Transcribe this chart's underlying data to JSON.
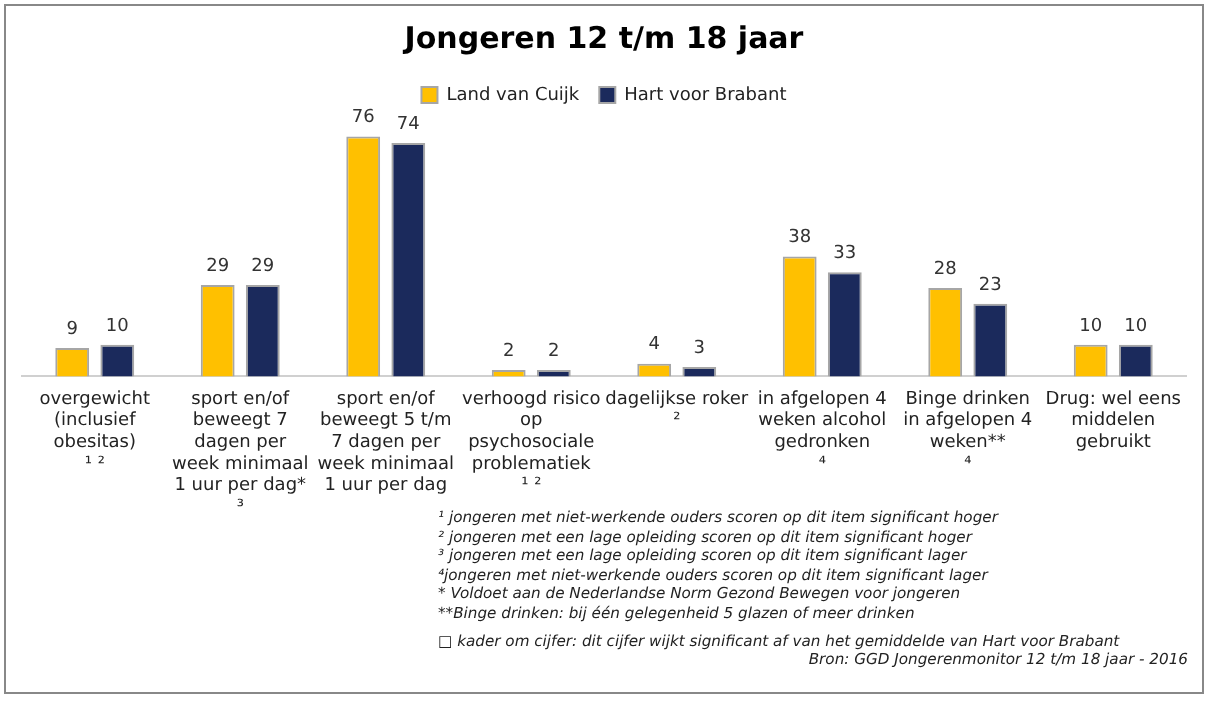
{
  "chart_data": {
    "type": "bar",
    "title": "Jongeren 12 t/m 18 jaar",
    "categories": [
      "overgewicht (inclusief obesitas) ¹ ²",
      "sport en/of beweegt 7 dagen per week minimaal 1 uur per dag* ³",
      "sport en/of beweegt 5 t/m 7 dagen per week minimaal 1 uur per dag",
      "verhoogd risico op psychosociale problematiek ¹ ²",
      "dagelijkse roker ²",
      "in afgelopen 4 weken alcohol gedronken ⁴",
      "Binge drinken in afgelopen 4 weken** ⁴",
      "Drug: wel eens middelen gebruikt"
    ],
    "series": [
      {
        "name": "Land van Cuijk",
        "color": "#ffc000",
        "values": [
          9,
          29,
          76,
          2,
          4,
          38,
          28,
          10
        ]
      },
      {
        "name": "Hart voor Brabant",
        "color": "#1b2a5c",
        "values": [
          10,
          29,
          74,
          2,
          3,
          33,
          23,
          10
        ]
      }
    ],
    "tick_labels": "x",
    "data_labels": true,
    "legend": "top",
    "annotations": [
      "¹ jongeren met niet-werkende ouders scoren op dit item significant hoger",
      "² jongeren met een lage opleiding scoren op dit item significant hoger",
      "³ jongeren met een lage opleiding scoren op dit item significant lager",
      "⁴jongeren met niet-werkende ouders scoren op dit item significant lager",
      "* Voldoet aan de Nederlandse Norm Gezond Bewegen voor jongeren",
      "**Binge drinken: bij één gelegenheid 5 glazen of meer drinken",
      "□ kader om cijfer: dit cijfer wijkt significant af van het gemiddelde van Hart voor Brabant",
      "Bron: GGD Jongerenmonitor 12 t/m 18 jaar - 2016"
    ]
  }
}
